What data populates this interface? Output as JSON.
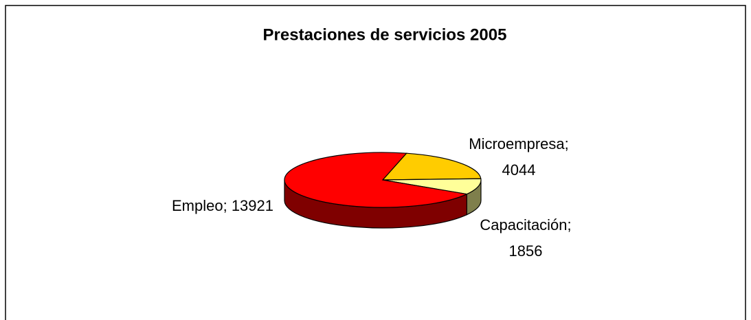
{
  "chart_data": {
    "type": "pie3d",
    "title": "Prestaciones de servicios 2005",
    "values": [
      4044,
      1856,
      13921
    ],
    "value_labels": [
      "Microempresa; 4044",
      "Capacitación; 1856",
      "Empleo; 13921"
    ],
    "colors": [
      "#ffcc00",
      "#ffff99",
      "#ff0000"
    ]
  }
}
